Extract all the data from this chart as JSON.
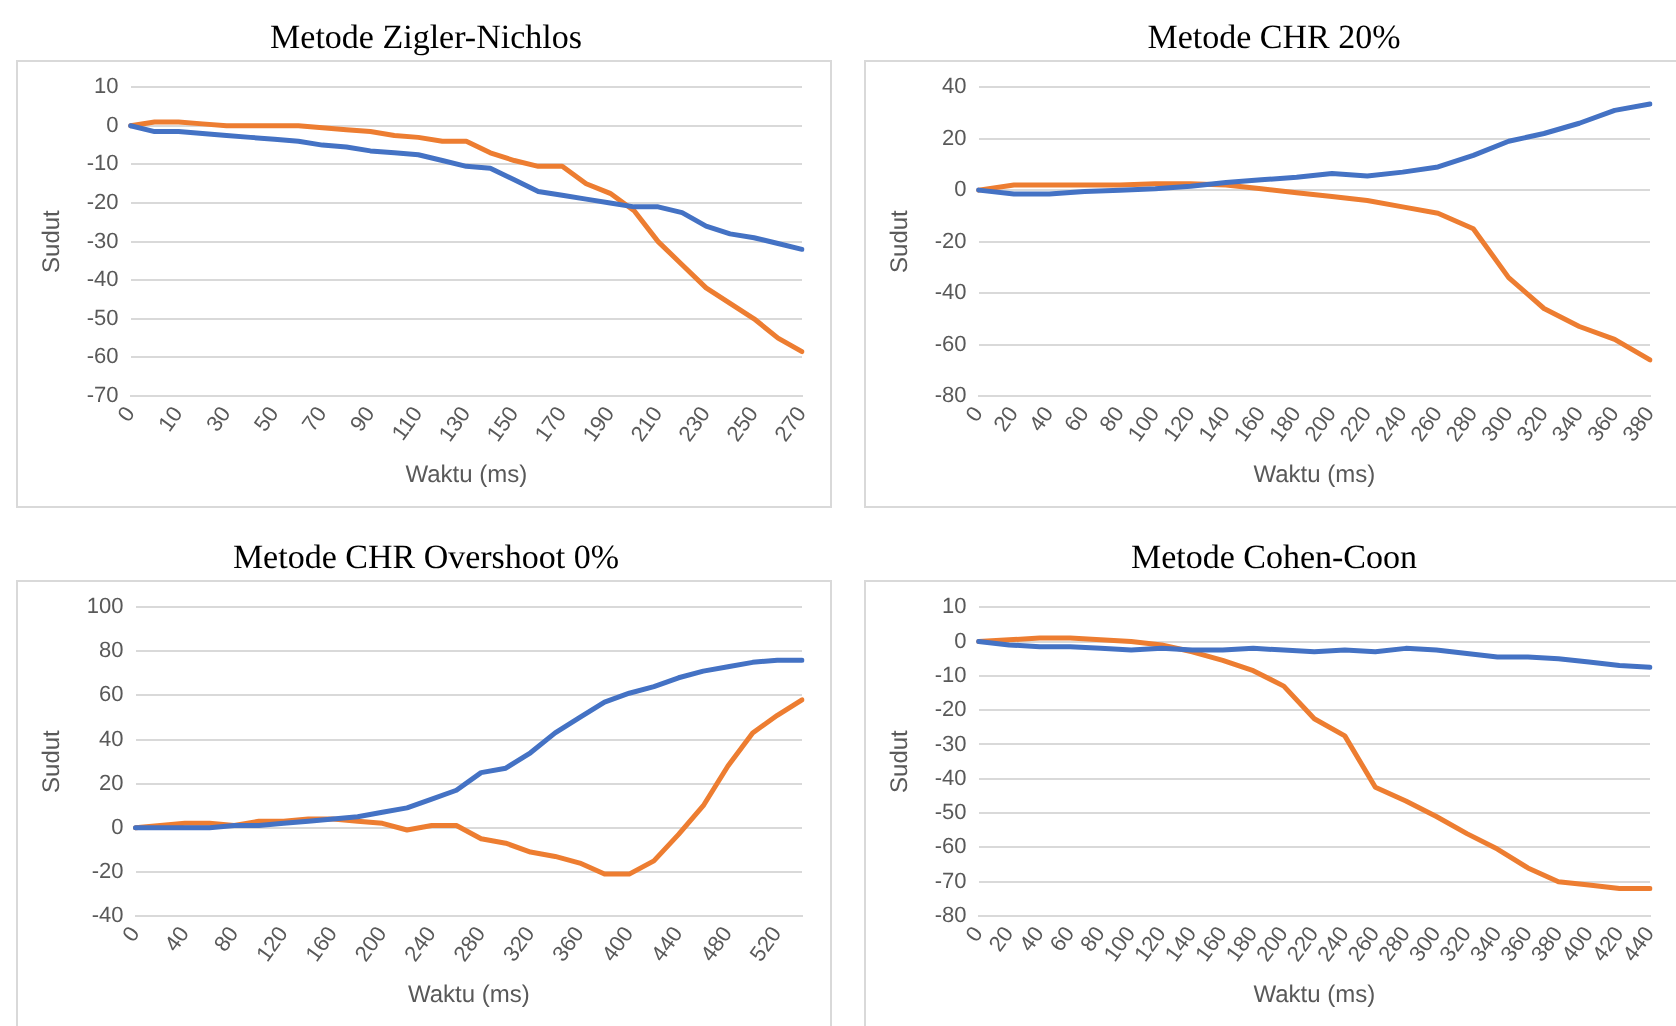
{
  "chart_data": [
    {
      "type": "line",
      "title": "Metode Zigler-Nichlos",
      "xlabel": "Waktu (ms)",
      "ylabel": "Sudut",
      "grid": "y",
      "ylim": [
        -70,
        10
      ],
      "yticks": [
        -70,
        -60,
        -50,
        -40,
        -30,
        -20,
        -10,
        0,
        10
      ],
      "categories": [
        "0",
        null,
        "10",
        null,
        "30",
        null,
        "50",
        null,
        "70",
        null,
        "90",
        null,
        "110",
        null,
        "130",
        null,
        "150",
        null,
        "170",
        null,
        "190",
        null,
        "210",
        null,
        "230",
        null,
        "250",
        null,
        "270"
      ],
      "series": [
        {
          "color": "#4472c4",
          "values": [
            0,
            -1.5,
            -1.5,
            -2,
            -2.5,
            -3,
            -3.5,
            -4,
            -5,
            -5.5,
            -6.5,
            -7,
            -7.5,
            -9,
            -10.5,
            -11,
            -14,
            -17,
            -18,
            -19,
            -20,
            -21,
            -21,
            -22.5,
            -26,
            -28,
            -29,
            -30.5,
            -32
          ]
        },
        {
          "color": "#ed7d31",
          "values": [
            0,
            1,
            1,
            0.5,
            0,
            0,
            0,
            0,
            -0.5,
            -1,
            -1.5,
            -2.5,
            -3,
            -4,
            -4,
            -7,
            -9,
            -10.5,
            -10.5,
            -15,
            -17.5,
            -22,
            -30,
            -36,
            -42,
            -46,
            -50,
            -55,
            -58.5
          ]
        }
      ]
    },
    {
      "type": "line",
      "title": "Metode CHR 20%",
      "xlabel": "Waktu (ms)",
      "ylabel": "Sudut",
      "grid": "y",
      "ylim": [
        -80,
        40
      ],
      "yticks": [
        -80,
        -60,
        -40,
        -20,
        0,
        20,
        40
      ],
      "categories": [
        "0",
        "20",
        "40",
        "60",
        "80",
        "100",
        "120",
        "140",
        "160",
        "180",
        "200",
        "220",
        "240",
        "260",
        "280",
        "300",
        "320",
        "340",
        "360",
        "380"
      ],
      "series": [
        {
          "color": "#4472c4",
          "values": [
            0,
            -1.5,
            -1.5,
            -0.5,
            0,
            0.5,
            1.5,
            3,
            4,
            5,
            6.5,
            5.5,
            7,
            9,
            13.5,
            19,
            22,
            26,
            31,
            33.5
          ]
        },
        {
          "color": "#ed7d31",
          "values": [
            0,
            2,
            2,
            2,
            2,
            2.5,
            2.5,
            2,
            0.5,
            -1,
            -2.5,
            -4,
            -6.5,
            -9,
            -15,
            -34,
            -46,
            -53,
            -58,
            -66
          ]
        }
      ]
    },
    {
      "type": "line",
      "title": "Metode CHR Overshoot 0%",
      "xlabel": "Waktu (ms)",
      "ylabel": "Sudut",
      "grid": "y",
      "ylim": [
        -40,
        100
      ],
      "yticks": [
        -40,
        -20,
        0,
        20,
        40,
        60,
        80,
        100
      ],
      "categories": [
        "0",
        null,
        "40",
        null,
        "80",
        null,
        "120",
        null,
        "160",
        null,
        "200",
        null,
        "240",
        null,
        "280",
        null,
        "320",
        null,
        "360",
        null,
        "400",
        null,
        "440",
        null,
        "480",
        null,
        "520",
        null
      ],
      "series": [
        {
          "color": "#4472c4",
          "values": [
            0,
            0,
            0,
            0,
            1,
            1,
            2,
            3,
            4,
            5,
            7,
            9,
            13,
            17,
            25,
            27,
            34,
            43,
            50,
            57,
            61,
            64,
            68,
            71,
            73,
            75,
            76,
            76
          ]
        },
        {
          "color": "#ed7d31",
          "values": [
            0,
            1,
            2,
            2,
            1,
            3,
            3,
            4,
            4,
            3,
            2,
            -1,
            1,
            1,
            -5,
            -7,
            -11,
            -13,
            -16,
            -21,
            -21,
            -15,
            -3,
            10,
            28,
            43,
            51,
            58
          ]
        }
      ]
    },
    {
      "type": "line",
      "title": "Metode Cohen-Coon",
      "xlabel": "Waktu (ms)",
      "ylabel": "Sudut",
      "grid": "y",
      "ylim": [
        -80,
        10
      ],
      "yticks": [
        -80,
        -70,
        -60,
        -50,
        -40,
        -30,
        -20,
        -10,
        0,
        10
      ],
      "categories": [
        "0",
        "20",
        "40",
        "60",
        "80",
        "100",
        "120",
        "140",
        "160",
        "180",
        "200",
        "220",
        "240",
        "260",
        "280",
        "300",
        "320",
        "340",
        "360",
        "380",
        "400",
        "420",
        "440"
      ],
      "series": [
        {
          "color": "#4472c4",
          "values": [
            0,
            -1,
            -1.5,
            -1.5,
            -2,
            -2.5,
            -2,
            -2.5,
            -2.5,
            -2,
            -2.5,
            -3,
            -2.5,
            -3,
            -2,
            -2.5,
            -3.5,
            -4.5,
            -4.5,
            -5,
            -6,
            -7,
            -7.5
          ]
        },
        {
          "color": "#ed7d31",
          "values": [
            0,
            0.5,
            1,
            1,
            0.5,
            0,
            -1,
            -3,
            -5.5,
            -8.5,
            -13,
            -22.5,
            -27.5,
            -42.5,
            -46.5,
            -51,
            -56,
            -60.5,
            -66,
            -70,
            -71,
            -72,
            -72
          ]
        }
      ]
    }
  ]
}
